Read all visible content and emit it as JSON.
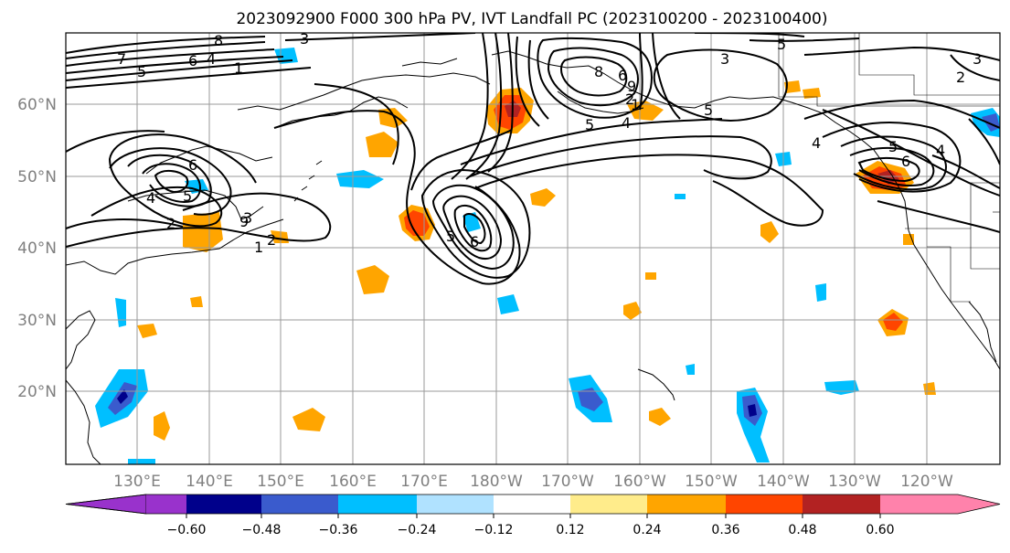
{
  "title": "2023092900 F000 300 hPa PV, IVT Landfall PC (2023100200 - 2023100400)",
  "lat_labels": [
    "60°N",
    "50°N",
    "40°N",
    "30°N",
    "20°N"
  ],
  "lon_labels": [
    "130°E",
    "140°E",
    "150°E",
    "160°E",
    "170°E",
    "180°W",
    "170°W",
    "160°W",
    "150°W",
    "140°W",
    "130°W",
    "120°W"
  ],
  "colorbar": {
    "ticks": [
      "−0.60",
      "−0.48",
      "−0.36",
      "−0.24",
      "−0.12",
      "0.12",
      "0.24",
      "0.36",
      "0.48",
      "0.60"
    ],
    "colors": [
      "#9932cc",
      "#00008b",
      "#3a5bcd",
      "#00bfff",
      "#b0e2ff",
      "#ffffff",
      "#ffec8b",
      "#ffa500",
      "#ff4500",
      "#b22222",
      "#ff82ab"
    ]
  },
  "contour_labels": [
    "3",
    "7",
    "5",
    "6",
    "4",
    "1",
    "8",
    "2",
    "9",
    "5",
    "6",
    "4",
    "3",
    "2",
    "1",
    "5",
    "8",
    "6",
    "5",
    "9",
    "3",
    "5",
    "2",
    "4",
    "5",
    "6",
    "4",
    "5",
    "3",
    "2",
    "6",
    "4",
    "1"
  ]
}
